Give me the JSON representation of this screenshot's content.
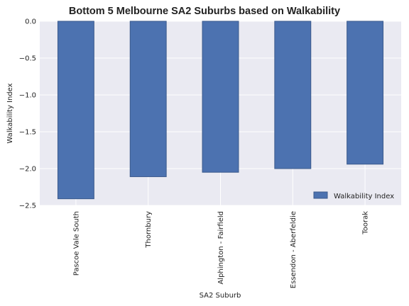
{
  "chart_data": {
    "type": "bar",
    "title": "Bottom 5 Melbourne SA2 Suburbs based on Walkability",
    "xlabel": "SA2 Suburb",
    "ylabel": "Walkability Index",
    "categories": [
      "Pascoe Vale South",
      "Thornbury",
      "Alphington - Fairfield",
      "Essendon - Aberfeldie",
      "Toorak"
    ],
    "series": [
      {
        "name": "Walkability Index",
        "values": [
          -2.41,
          -2.11,
          -2.05,
          -2.0,
          -1.94
        ]
      }
    ],
    "ylim": [
      -2.5,
      0.0
    ],
    "yticks": [
      0.0,
      -0.5,
      -1.0,
      -1.5,
      -2.0,
      -2.5
    ],
    "ytick_labels": [
      "0.0",
      "−0.5",
      "−1.0",
      "−1.5",
      "−2.0",
      "−2.5"
    ],
    "grid": true,
    "legend_position": "bottom-right",
    "colors": {
      "bar": "#4c72b0",
      "bar_edge": "#3b5a8c",
      "plot_bg": "#eaeaf2",
      "grid": "#ffffff",
      "page_bg": "#ffffff"
    }
  }
}
